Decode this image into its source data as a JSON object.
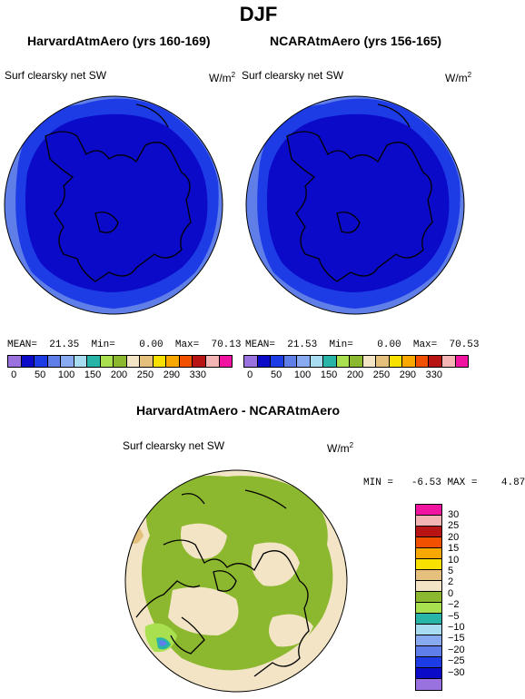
{
  "title": "DJF",
  "panels": [
    {
      "title": "HarvardAtmAero (yrs 160-169)",
      "variable": "Surf clearsky net SW",
      "units_base": "W/m",
      "units_exp": "2",
      "stats": {
        "mean_label": "MEAN=",
        "mean": "21.35",
        "min_label": "Min=",
        "min": "0.00",
        "max_label": "Max=",
        "max": "70.13"
      }
    },
    {
      "title": "NCARAtmAero (yrs 156-165)",
      "variable": "Surf clearsky net SW",
      "units_base": "W/m",
      "units_exp": "2",
      "stats": {
        "mean_label": "MEAN=",
        "mean": "21.53",
        "min_label": "Min=",
        "min": "0.00",
        "max_label": "Max=",
        "max": "70.53"
      }
    }
  ],
  "colorbar_top": {
    "colors": [
      "#9a72e0",
      "#0a0ac8",
      "#1e3ce6",
      "#5f7ee8",
      "#88aaf0",
      "#a8dcf0",
      "#28b4a6",
      "#a8e050",
      "#8cb830",
      "#f2e4c4",
      "#e4c07c",
      "#f8e000",
      "#f8a800",
      "#f05000",
      "#b81414",
      "#f4b4b4",
      "#f014a0"
    ],
    "labels": [
      "0",
      "50",
      "100",
      "150",
      "200",
      "250",
      "290",
      "330"
    ],
    "label_positions": [
      "0",
      "50",
      "100",
      "150",
      "200",
      "250",
      "290",
      "330"
    ]
  },
  "diff_panel": {
    "title": "HarvardAtmAero - NCARAtmAero",
    "variable": "Surf clearsky net SW",
    "units_base": "W/m",
    "units_exp": "2",
    "stats": {
      "min_label": "MIN =",
      "min": "-6.53",
      "max_label": "MAX =",
      "max": "4.87"
    }
  },
  "colorbar_diff": {
    "colors_top_to_bottom": [
      "#f014a0",
      "#f4b4b4",
      "#b81414",
      "#f05000",
      "#f8a800",
      "#f8e000",
      "#e4c07c",
      "#f2e4c4",
      "#8cb830",
      "#a8e050",
      "#28b4a6",
      "#a8dcf0",
      "#88aaf0",
      "#5f7ee8",
      "#1e3ce6",
      "#0a0ac8",
      "#9a72e0"
    ],
    "labels_top_to_bottom": [
      "30",
      "25",
      "20",
      "15",
      "10",
      "5",
      "2",
      "0",
      "−2",
      "−5",
      "−10",
      "−15",
      "−20",
      "−25",
      "−30"
    ]
  },
  "map_colors": {
    "outer": "#5f7ee8",
    "mid": "#1e3ce6",
    "core": "#0a0ac8",
    "diff_bg": "#f2e4c4",
    "diff_green": "#8cb830",
    "diff_light": "#a8e050",
    "diff_tan": "#e4c07c",
    "diff_teal": "#28b4a6",
    "diff_blue": "#5f7ee8"
  }
}
